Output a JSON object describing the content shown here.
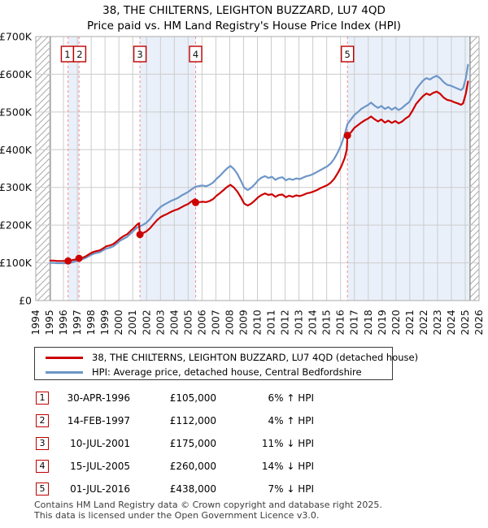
{
  "title": {
    "line1": "38, THE CHILTERNS, LEIGHTON BUZZARD, LU7 4QD",
    "line2": "Price paid vs. HM Land Registry's House Price Index (HPI)"
  },
  "legend": [
    {
      "label": "38, THE CHILTERNS, LEIGHTON BUZZARD, LU7 4QD (detached house)",
      "color": "#cc0000"
    },
    {
      "label": "HPI: Average price, detached house, Central Bedfordshire",
      "color": "#6d96c8"
    }
  ],
  "table": {
    "rows": [
      {
        "num": "1",
        "date": "30-APR-1996",
        "price": "£105,000",
        "change": "6% ↑ HPI"
      },
      {
        "num": "2",
        "date": "14-FEB-1997",
        "price": "£112,000",
        "change": "4% ↑ HPI"
      },
      {
        "num": "3",
        "date": "10-JUL-2001",
        "price": "£175,000",
        "change": "11% ↓ HPI"
      },
      {
        "num": "4",
        "date": "15-JUL-2005",
        "price": "£260,000",
        "change": "14% ↓ HPI"
      },
      {
        "num": "5",
        "date": "01-JUL-2016",
        "price": "£438,000",
        "change": "7% ↓ HPI"
      }
    ]
  },
  "footer": {
    "line1": "Contains HM Land Registry data © Crown copyright and database right 2025.",
    "line2": "This data is licensed under the Open Government Licence v3.0."
  },
  "chart_data": {
    "type": "line",
    "title": "Price paid vs. HPI",
    "xlabel": "",
    "ylabel": "",
    "xlim": [
      1994,
      2026
    ],
    "ylim": [
      0,
      700000
    ],
    "grid": true,
    "legend_position": "bottom",
    "y_tick_labels": [
      "£0",
      "£100K",
      "£200K",
      "£300K",
      "£400K",
      "£500K",
      "£600K",
      "£700K"
    ],
    "x_tick_labels": [
      1994,
      1995,
      1996,
      1997,
      1998,
      1999,
      2000,
      2001,
      2002,
      2003,
      2004,
      2005,
      2006,
      2007,
      2008,
      2009,
      2010,
      2011,
      2012,
      2013,
      2014,
      2015,
      2016,
      2017,
      2018,
      2019,
      2020,
      2021,
      2022,
      2023,
      2024,
      2025,
      2026
    ],
    "colors": {
      "red": "#cc0000",
      "blue": "#6d96c8",
      "band": "#eaf0fa",
      "grid": "#cccccc",
      "dashed": "#f48a8a",
      "hatch_line": "#aaaaaa",
      "border": "#aaaaaa",
      "box_border": "#c00000",
      "edge_line": "#808080"
    },
    "bands": [
      [
        1996.33,
        1997.12
      ],
      [
        2001.52,
        2005.54
      ],
      [
        2016.5,
        2025.35
      ]
    ],
    "hatch_regions": [
      [
        1994,
        1995.05
      ],
      [
        2025.35,
        2026
      ]
    ],
    "sales": [
      {
        "n": "1",
        "x": 1996.33,
        "y": 105
      },
      {
        "n": "2",
        "x": 1997.12,
        "y": 112
      },
      {
        "n": "3",
        "x": 2001.52,
        "y": 175
      },
      {
        "n": "4",
        "x": 2005.54,
        "y": 260
      },
      {
        "n": "5",
        "x": 2016.5,
        "y": 438
      }
    ],
    "series": [
      {
        "name": "HPI: Average price, detached house, Central Bedfordshire",
        "color": "#6d96c8",
        "unit": "£K",
        "points": [
          [
            1995.05,
            100
          ],
          [
            1995.3,
            100
          ],
          [
            1995.55,
            99
          ],
          [
            1995.8,
            99
          ],
          [
            1996.05,
            99
          ],
          [
            1996.33,
            99
          ],
          [
            1996.6,
            101
          ],
          [
            1996.85,
            104
          ],
          [
            1997.12,
            108
          ],
          [
            1997.4,
            110
          ],
          [
            1997.6,
            113
          ],
          [
            1997.85,
            118
          ],
          [
            1998.1,
            123
          ],
          [
            1998.35,
            126
          ],
          [
            1998.6,
            128
          ],
          [
            1998.85,
            133
          ],
          [
            1999.1,
            138
          ],
          [
            1999.35,
            140
          ],
          [
            1999.6,
            144
          ],
          [
            1999.85,
            151
          ],
          [
            2000.1,
            159
          ],
          [
            2000.35,
            164
          ],
          [
            2000.6,
            169
          ],
          [
            2000.85,
            178
          ],
          [
            2001.1,
            186
          ],
          [
            2001.3,
            193
          ],
          [
            2001.52,
            197
          ],
          [
            2001.75,
            201
          ],
          [
            2002.0,
            207
          ],
          [
            2002.25,
            216
          ],
          [
            2002.5,
            228
          ],
          [
            2002.75,
            239
          ],
          [
            2003.0,
            248
          ],
          [
            2003.25,
            254
          ],
          [
            2003.5,
            259
          ],
          [
            2003.75,
            264
          ],
          [
            2004.0,
            268
          ],
          [
            2004.25,
            272
          ],
          [
            2004.5,
            278
          ],
          [
            2004.75,
            283
          ],
          [
            2005.0,
            288
          ],
          [
            2005.25,
            295
          ],
          [
            2005.54,
            302
          ],
          [
            2005.8,
            304
          ],
          [
            2006.05,
            305
          ],
          [
            2006.3,
            303
          ],
          [
            2006.55,
            307
          ],
          [
            2006.8,
            313
          ],
          [
            2007.05,
            323
          ],
          [
            2007.3,
            331
          ],
          [
            2007.55,
            341
          ],
          [
            2007.8,
            350
          ],
          [
            2008.05,
            357
          ],
          [
            2008.3,
            349
          ],
          [
            2008.55,
            336
          ],
          [
            2008.8,
            318
          ],
          [
            2009.05,
            299
          ],
          [
            2009.3,
            293
          ],
          [
            2009.55,
            299
          ],
          [
            2009.8,
            308
          ],
          [
            2010.05,
            319
          ],
          [
            2010.3,
            326
          ],
          [
            2010.55,
            330
          ],
          [
            2010.8,
            325
          ],
          [
            2011.05,
            328
          ],
          [
            2011.3,
            320
          ],
          [
            2011.55,
            325
          ],
          [
            2011.8,
            327
          ],
          [
            2012.05,
            319
          ],
          [
            2012.3,
            323
          ],
          [
            2012.55,
            320
          ],
          [
            2012.8,
            324
          ],
          [
            2013.05,
            322
          ],
          [
            2013.3,
            326
          ],
          [
            2013.55,
            330
          ],
          [
            2013.8,
            332
          ],
          [
            2014.05,
            336
          ],
          [
            2014.3,
            341
          ],
          [
            2014.55,
            346
          ],
          [
            2014.8,
            351
          ],
          [
            2015.05,
            356
          ],
          [
            2015.3,
            364
          ],
          [
            2015.55,
            376
          ],
          [
            2015.8,
            393
          ],
          [
            2016.05,
            413
          ],
          [
            2016.3,
            440
          ],
          [
            2016.5,
            468
          ],
          [
            2016.75,
            480
          ],
          [
            2017.0,
            492
          ],
          [
            2017.25,
            500
          ],
          [
            2017.5,
            508
          ],
          [
            2017.75,
            514
          ],
          [
            2018.0,
            519
          ],
          [
            2018.2,
            525
          ],
          [
            2018.45,
            517
          ],
          [
            2018.7,
            511
          ],
          [
            2018.95,
            516
          ],
          [
            2019.2,
            508
          ],
          [
            2019.45,
            513
          ],
          [
            2019.7,
            506
          ],
          [
            2019.95,
            512
          ],
          [
            2020.2,
            505
          ],
          [
            2020.45,
            511
          ],
          [
            2020.7,
            519
          ],
          [
            2020.95,
            526
          ],
          [
            2021.2,
            542
          ],
          [
            2021.45,
            560
          ],
          [
            2021.7,
            572
          ],
          [
            2021.95,
            583
          ],
          [
            2022.2,
            590
          ],
          [
            2022.45,
            586
          ],
          [
            2022.7,
            592
          ],
          [
            2022.95,
            596
          ],
          [
            2023.2,
            589
          ],
          [
            2023.45,
            579
          ],
          [
            2023.7,
            572
          ],
          [
            2023.95,
            570
          ],
          [
            2024.2,
            566
          ],
          [
            2024.45,
            562
          ],
          [
            2024.7,
            558
          ],
          [
            2024.85,
            563
          ],
          [
            2025.05,
            590
          ],
          [
            2025.2,
            625
          ]
        ]
      },
      {
        "name": "38, THE CHILTERNS, LEIGHTON BUZZARD, LU7 4QD (detached house)",
        "color": "#cc0000",
        "unit": "£K",
        "points": [
          [
            1995.05,
            106
          ],
          [
            1995.3,
            106
          ],
          [
            1995.55,
            105
          ],
          [
            1995.8,
            105
          ],
          [
            1996.05,
            105
          ],
          [
            1996.33,
            105
          ],
          [
            1996.6,
            107
          ],
          [
            1996.85,
            109
          ],
          [
            1997.12,
            112
          ],
          [
            1997.4,
            114
          ],
          [
            1997.6,
            117
          ],
          [
            1997.85,
            123
          ],
          [
            1998.1,
            128
          ],
          [
            1998.35,
            131
          ],
          [
            1998.6,
            133
          ],
          [
            1998.85,
            138
          ],
          [
            1999.1,
            144
          ],
          [
            1999.35,
            146
          ],
          [
            1999.6,
            150
          ],
          [
            1999.85,
            157
          ],
          [
            2000.1,
            165
          ],
          [
            2000.35,
            171
          ],
          [
            2000.6,
            176
          ],
          [
            2000.85,
            185
          ],
          [
            2001.1,
            193
          ],
          [
            2001.3,
            201
          ],
          [
            2001.45,
            205
          ],
          [
            2001.52,
            175
          ],
          [
            2001.75,
            179
          ],
          [
            2002.0,
            184
          ],
          [
            2002.25,
            192
          ],
          [
            2002.5,
            203
          ],
          [
            2002.75,
            213
          ],
          [
            2003.0,
            221
          ],
          [
            2003.25,
            226
          ],
          [
            2003.5,
            230
          ],
          [
            2003.75,
            235
          ],
          [
            2004.0,
            239
          ],
          [
            2004.25,
            242
          ],
          [
            2004.5,
            247
          ],
          [
            2004.75,
            252
          ],
          [
            2005.0,
            256
          ],
          [
            2005.25,
            263
          ],
          [
            2005.5,
            269
          ],
          [
            2005.54,
            260
          ],
          [
            2005.8,
            261
          ],
          [
            2006.05,
            262
          ],
          [
            2006.3,
            261
          ],
          [
            2006.55,
            264
          ],
          [
            2006.8,
            269
          ],
          [
            2007.05,
            278
          ],
          [
            2007.3,
            285
          ],
          [
            2007.55,
            293
          ],
          [
            2007.8,
            301
          ],
          [
            2008.05,
            307
          ],
          [
            2008.3,
            300
          ],
          [
            2008.55,
            289
          ],
          [
            2008.8,
            274
          ],
          [
            2009.05,
            257
          ],
          [
            2009.3,
            252
          ],
          [
            2009.55,
            257
          ],
          [
            2009.8,
            265
          ],
          [
            2010.05,
            274
          ],
          [
            2010.3,
            280
          ],
          [
            2010.55,
            284
          ],
          [
            2010.8,
            280
          ],
          [
            2011.05,
            282
          ],
          [
            2011.3,
            275
          ],
          [
            2011.55,
            280
          ],
          [
            2011.8,
            281
          ],
          [
            2012.05,
            274
          ],
          [
            2012.3,
            278
          ],
          [
            2012.55,
            275
          ],
          [
            2012.8,
            279
          ],
          [
            2013.05,
            277
          ],
          [
            2013.3,
            280
          ],
          [
            2013.55,
            284
          ],
          [
            2013.8,
            286
          ],
          [
            2014.05,
            289
          ],
          [
            2014.3,
            293
          ],
          [
            2014.55,
            298
          ],
          [
            2014.8,
            302
          ],
          [
            2015.05,
            306
          ],
          [
            2015.3,
            313
          ],
          [
            2015.55,
            323
          ],
          [
            2015.8,
            338
          ],
          [
            2016.05,
            355
          ],
          [
            2016.3,
            378
          ],
          [
            2016.45,
            400
          ],
          [
            2016.5,
            438
          ],
          [
            2016.75,
            446
          ],
          [
            2017.0,
            458
          ],
          [
            2017.25,
            465
          ],
          [
            2017.5,
            472
          ],
          [
            2017.75,
            478
          ],
          [
            2018.0,
            483
          ],
          [
            2018.2,
            488
          ],
          [
            2018.45,
            481
          ],
          [
            2018.7,
            475
          ],
          [
            2018.95,
            480
          ],
          [
            2019.2,
            472
          ],
          [
            2019.45,
            477
          ],
          [
            2019.7,
            471
          ],
          [
            2019.95,
            476
          ],
          [
            2020.2,
            470
          ],
          [
            2020.45,
            475
          ],
          [
            2020.7,
            483
          ],
          [
            2020.95,
            489
          ],
          [
            2021.2,
            504
          ],
          [
            2021.45,
            521
          ],
          [
            2021.7,
            532
          ],
          [
            2021.95,
            542
          ],
          [
            2022.2,
            549
          ],
          [
            2022.45,
            545
          ],
          [
            2022.7,
            551
          ],
          [
            2022.95,
            554
          ],
          [
            2023.2,
            548
          ],
          [
            2023.45,
            538
          ],
          [
            2023.7,
            532
          ],
          [
            2023.95,
            530
          ],
          [
            2024.2,
            526
          ],
          [
            2024.45,
            523
          ],
          [
            2024.7,
            519
          ],
          [
            2024.85,
            523
          ],
          [
            2025.05,
            549
          ],
          [
            2025.2,
            581
          ]
        ]
      }
    ]
  }
}
